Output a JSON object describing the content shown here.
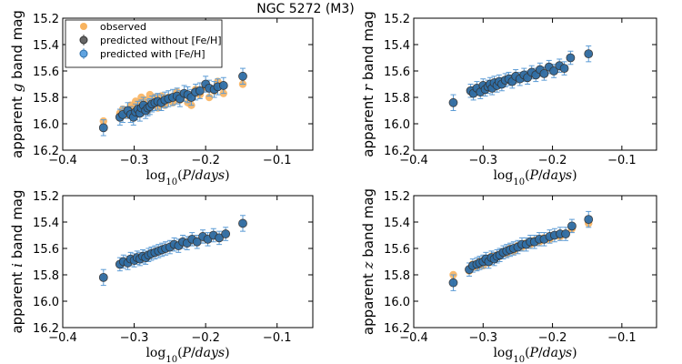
{
  "title": "NGC 5272 (M3)",
  "colors": {
    "observed": "#f8b35f",
    "predicted_without": "#333333",
    "predicted_with": "#5fa3e0",
    "errorbar": "#5b9bd5",
    "edge": "#333333"
  },
  "legend": {
    "observed": "observed",
    "predicted_without": "predicted without [Fe/H]",
    "predicted_with": "predicted with [Fe/H]"
  },
  "chart_data": [
    {
      "type": "scatter",
      "band": "g",
      "ylabel_prefix": "apparent ",
      "ylabel_var": "g",
      "ylabel_suffix": " band mag",
      "xlabel": "log10(P/days)",
      "xlim": [
        -0.4,
        -0.05
      ],
      "ylim": [
        16.2,
        15.2
      ],
      "xticks": [
        "−0.4",
        "−0.3",
        "−0.2",
        "−0.1"
      ],
      "yticks": [
        "15.2",
        "15.4",
        "15.6",
        "15.8",
        "16.0",
        "16.2"
      ],
      "points": [
        {
          "x": -0.343,
          "obs": 15.98,
          "pred": 16.03,
          "err": 0.06
        },
        {
          "x": -0.32,
          "obs": 15.92,
          "pred": 15.95,
          "err": 0.06
        },
        {
          "x": -0.316,
          "obs": 15.89,
          "pred": 15.93,
          "err": 0.06
        },
        {
          "x": -0.309,
          "obs": 15.93,
          "pred": 15.9,
          "err": 0.06
        },
        {
          "x": -0.305,
          "obs": 15.86,
          "pred": 15.93,
          "err": 0.06
        },
        {
          "x": -0.301,
          "obs": 15.88,
          "pred": 15.95,
          "err": 0.06
        },
        {
          "x": -0.298,
          "obs": 15.83,
          "pred": 15.91,
          "err": 0.06
        },
        {
          "x": -0.295,
          "obs": 15.9,
          "pred": 15.89,
          "err": 0.06
        },
        {
          "x": -0.292,
          "obs": 15.85,
          "pred": 15.92,
          "err": 0.06
        },
        {
          "x": -0.29,
          "obs": 15.8,
          "pred": 15.88,
          "err": 0.06
        },
        {
          "x": -0.287,
          "obs": 15.87,
          "pred": 15.86,
          "err": 0.06
        },
        {
          "x": -0.284,
          "obs": 15.82,
          "pred": 15.9,
          "err": 0.06
        },
        {
          "x": -0.281,
          "obs": 15.9,
          "pred": 15.88,
          "err": 0.06
        },
        {
          "x": -0.278,
          "obs": 15.78,
          "pred": 15.87,
          "err": 0.06
        },
        {
          "x": -0.275,
          "obs": 15.84,
          "pred": 15.85,
          "err": 0.06
        },
        {
          "x": -0.271,
          "obs": 15.8,
          "pred": 15.84,
          "err": 0.06
        },
        {
          "x": -0.267,
          "obs": 15.88,
          "pred": 15.83,
          "err": 0.06
        },
        {
          "x": -0.262,
          "obs": 15.79,
          "pred": 15.84,
          "err": 0.06
        },
        {
          "x": -0.257,
          "obs": 15.86,
          "pred": 15.82,
          "err": 0.06
        },
        {
          "x": -0.252,
          "obs": 15.8,
          "pred": 15.81,
          "err": 0.06
        },
        {
          "x": -0.246,
          "obs": 15.84,
          "pred": 15.8,
          "err": 0.06
        },
        {
          "x": -0.24,
          "obs": 15.76,
          "pred": 15.79,
          "err": 0.06
        },
        {
          "x": -0.236,
          "obs": 15.82,
          "pred": 15.81,
          "err": 0.06
        },
        {
          "x": -0.23,
          "obs": 15.78,
          "pred": 15.77,
          "err": 0.06
        },
        {
          "x": -0.225,
          "obs": 15.84,
          "pred": 15.78,
          "err": 0.06
        },
        {
          "x": -0.22,
          "obs": 15.86,
          "pred": 15.8,
          "err": 0.06
        },
        {
          "x": -0.214,
          "obs": 15.74,
          "pred": 15.76,
          "err": 0.06
        },
        {
          "x": -0.208,
          "obs": 15.78,
          "pred": 15.75,
          "err": 0.06
        },
        {
          "x": -0.2,
          "obs": 15.72,
          "pred": 15.7,
          "err": 0.06
        },
        {
          "x": -0.195,
          "obs": 15.8,
          "pred": 15.73,
          "err": 0.06
        },
        {
          "x": -0.188,
          "obs": 15.75,
          "pred": 15.74,
          "err": 0.06
        },
        {
          "x": -0.183,
          "obs": 15.68,
          "pred": 15.72,
          "err": 0.06
        },
        {
          "x": -0.175,
          "obs": 15.77,
          "pred": 15.71,
          "err": 0.06
        },
        {
          "x": -0.148,
          "obs": 15.7,
          "pred": 15.64,
          "err": 0.06
        }
      ]
    },
    {
      "type": "scatter",
      "band": "r",
      "ylabel_prefix": "apparent ",
      "ylabel_var": "r",
      "ylabel_suffix": " band mag",
      "xlabel": "log10(P/days)",
      "xlim": [
        -0.4,
        -0.05
      ],
      "ylim": [
        16.2,
        15.2
      ],
      "xticks": [
        "−0.4",
        "−0.3",
        "−0.2",
        "−0.1"
      ],
      "yticks": [
        "15.2",
        "15.4",
        "15.6",
        "15.8",
        "16.0",
        "16.2"
      ],
      "points": [
        {
          "x": -0.343,
          "obs": 15.84,
          "pred": 15.84,
          "err": 0.06
        },
        {
          "x": -0.318,
          "obs": 15.75,
          "pred": 15.75,
          "err": 0.05
        },
        {
          "x": -0.314,
          "obs": 15.77,
          "pred": 15.77,
          "err": 0.05
        },
        {
          "x": -0.309,
          "obs": 15.73,
          "pred": 15.73,
          "err": 0.05
        },
        {
          "x": -0.304,
          "obs": 15.76,
          "pred": 15.76,
          "err": 0.05
        },
        {
          "x": -0.3,
          "obs": 15.71,
          "pred": 15.71,
          "err": 0.05
        },
        {
          "x": -0.297,
          "obs": 15.74,
          "pred": 15.74,
          "err": 0.05
        },
        {
          "x": -0.293,
          "obs": 15.72,
          "pred": 15.72,
          "err": 0.05
        },
        {
          "x": -0.29,
          "obs": 15.7,
          "pred": 15.7,
          "err": 0.05
        },
        {
          "x": -0.287,
          "obs": 15.73,
          "pred": 15.73,
          "err": 0.05
        },
        {
          "x": -0.284,
          "obs": 15.69,
          "pred": 15.69,
          "err": 0.05
        },
        {
          "x": -0.28,
          "obs": 15.71,
          "pred": 15.71,
          "err": 0.05
        },
        {
          "x": -0.277,
          "obs": 15.68,
          "pred": 15.68,
          "err": 0.05
        },
        {
          "x": -0.273,
          "obs": 15.7,
          "pred": 15.7,
          "err": 0.05
        },
        {
          "x": -0.268,
          "obs": 15.67,
          "pred": 15.67,
          "err": 0.05
        },
        {
          "x": -0.263,
          "obs": 15.66,
          "pred": 15.66,
          "err": 0.05
        },
        {
          "x": -0.258,
          "obs": 15.68,
          "pred": 15.68,
          "err": 0.05
        },
        {
          "x": -0.253,
          "obs": 15.64,
          "pred": 15.64,
          "err": 0.05
        },
        {
          "x": -0.247,
          "obs": 15.66,
          "pred": 15.66,
          "err": 0.05
        },
        {
          "x": -0.241,
          "obs": 15.63,
          "pred": 15.63,
          "err": 0.05
        },
        {
          "x": -0.236,
          "obs": 15.65,
          "pred": 15.65,
          "err": 0.05
        },
        {
          "x": -0.23,
          "obs": 15.61,
          "pred": 15.61,
          "err": 0.05
        },
        {
          "x": -0.224,
          "obs": 15.63,
          "pred": 15.63,
          "err": 0.05
        },
        {
          "x": -0.218,
          "obs": 15.59,
          "pred": 15.59,
          "err": 0.05
        },
        {
          "x": -0.212,
          "obs": 15.62,
          "pred": 15.62,
          "err": 0.05
        },
        {
          "x": -0.205,
          "obs": 15.57,
          "pred": 15.57,
          "err": 0.05
        },
        {
          "x": -0.198,
          "obs": 15.6,
          "pred": 15.6,
          "err": 0.05
        },
        {
          "x": -0.19,
          "obs": 15.56,
          "pred": 15.56,
          "err": 0.05
        },
        {
          "x": -0.183,
          "obs": 15.58,
          "pred": 15.58,
          "err": 0.05
        },
        {
          "x": -0.174,
          "obs": 15.5,
          "pred": 15.5,
          "err": 0.05
        },
        {
          "x": -0.148,
          "obs": 15.47,
          "pred": 15.47,
          "err": 0.06
        }
      ]
    },
    {
      "type": "scatter",
      "band": "i",
      "ylabel_prefix": "apparent ",
      "ylabel_var": "i",
      "ylabel_suffix": " band mag",
      "xlabel": "log10(P/days)",
      "xlim": [
        -0.4,
        -0.05
      ],
      "ylim": [
        16.2,
        15.2
      ],
      "xticks": [
        "−0.4",
        "−0.3",
        "−0.2",
        "−0.1"
      ],
      "yticks": [
        "15.2",
        "15.4",
        "15.6",
        "15.8",
        "16.0",
        "16.2"
      ],
      "points": [
        {
          "x": -0.343,
          "obs": 15.82,
          "pred": 15.82,
          "err": 0.06
        },
        {
          "x": -0.32,
          "obs": 15.72,
          "pred": 15.72,
          "err": 0.05
        },
        {
          "x": -0.315,
          "obs": 15.7,
          "pred": 15.7,
          "err": 0.05
        },
        {
          "x": -0.309,
          "obs": 15.71,
          "pred": 15.71,
          "err": 0.05
        },
        {
          "x": -0.305,
          "obs": 15.68,
          "pred": 15.68,
          "err": 0.05
        },
        {
          "x": -0.3,
          "obs": 15.69,
          "pred": 15.69,
          "err": 0.05
        },
        {
          "x": -0.296,
          "obs": 15.67,
          "pred": 15.67,
          "err": 0.05
        },
        {
          "x": -0.292,
          "obs": 15.68,
          "pred": 15.68,
          "err": 0.05
        },
        {
          "x": -0.288,
          "obs": 15.66,
          "pred": 15.66,
          "err": 0.05
        },
        {
          "x": -0.284,
          "obs": 15.67,
          "pred": 15.67,
          "err": 0.05
        },
        {
          "x": -0.28,
          "obs": 15.65,
          "pred": 15.65,
          "err": 0.05
        },
        {
          "x": -0.276,
          "obs": 15.64,
          "pred": 15.64,
          "err": 0.05
        },
        {
          "x": -0.271,
          "obs": 15.63,
          "pred": 15.63,
          "err": 0.05
        },
        {
          "x": -0.266,
          "obs": 15.62,
          "pred": 15.62,
          "err": 0.05
        },
        {
          "x": -0.261,
          "obs": 15.61,
          "pred": 15.61,
          "err": 0.05
        },
        {
          "x": -0.256,
          "obs": 15.6,
          "pred": 15.6,
          "err": 0.05
        },
        {
          "x": -0.25,
          "obs": 15.59,
          "pred": 15.59,
          "err": 0.05
        },
        {
          "x": -0.244,
          "obs": 15.57,
          "pred": 15.57,
          "err": 0.05
        },
        {
          "x": -0.238,
          "obs": 15.58,
          "pred": 15.58,
          "err": 0.05
        },
        {
          "x": -0.232,
          "obs": 15.55,
          "pred": 15.55,
          "err": 0.05
        },
        {
          "x": -0.226,
          "obs": 15.56,
          "pred": 15.56,
          "err": 0.05
        },
        {
          "x": -0.219,
          "obs": 15.53,
          "pred": 15.53,
          "err": 0.05
        },
        {
          "x": -0.212,
          "obs": 15.55,
          "pred": 15.55,
          "err": 0.05
        },
        {
          "x": -0.204,
          "obs": 15.51,
          "pred": 15.51,
          "err": 0.05
        },
        {
          "x": -0.197,
          "obs": 15.53,
          "pred": 15.53,
          "err": 0.05
        },
        {
          "x": -0.189,
          "obs": 15.5,
          "pred": 15.5,
          "err": 0.05
        },
        {
          "x": -0.181,
          "obs": 15.52,
          "pred": 15.52,
          "err": 0.05
        },
        {
          "x": -0.172,
          "obs": 15.49,
          "pred": 15.49,
          "err": 0.05
        },
        {
          "x": -0.148,
          "obs": 15.41,
          "pred": 15.41,
          "err": 0.06
        }
      ]
    },
    {
      "type": "scatter",
      "band": "z",
      "ylabel_prefix": "apparent ",
      "ylabel_var": "z",
      "ylabel_suffix": " band mag",
      "xlabel": "log10(P/days)",
      "xlim": [
        -0.4,
        -0.05
      ],
      "ylim": [
        16.2,
        15.2
      ],
      "xticks": [
        "−0.4",
        "−0.3",
        "−0.2",
        "−0.1"
      ],
      "yticks": [
        "15.2",
        "15.4",
        "15.6",
        "15.8",
        "16.0",
        "16.2"
      ],
      "points": [
        {
          "x": -0.343,
          "obs": 15.8,
          "pred": 15.86,
          "err": 0.06
        },
        {
          "x": -0.32,
          "obs": 15.77,
          "pred": 15.76,
          "err": 0.05
        },
        {
          "x": -0.315,
          "obs": 15.72,
          "pred": 15.73,
          "err": 0.05
        },
        {
          "x": -0.309,
          "obs": 15.74,
          "pred": 15.72,
          "err": 0.05
        },
        {
          "x": -0.305,
          "obs": 15.7,
          "pred": 15.71,
          "err": 0.05
        },
        {
          "x": -0.3,
          "obs": 15.73,
          "pred": 15.7,
          "err": 0.05
        },
        {
          "x": -0.296,
          "obs": 15.69,
          "pred": 15.68,
          "err": 0.05
        },
        {
          "x": -0.292,
          "obs": 15.71,
          "pred": 15.7,
          "err": 0.05
        },
        {
          "x": -0.288,
          "obs": 15.66,
          "pred": 15.67,
          "err": 0.05
        },
        {
          "x": -0.284,
          "obs": 15.68,
          "pred": 15.68,
          "err": 0.05
        },
        {
          "x": -0.28,
          "obs": 15.65,
          "pred": 15.66,
          "err": 0.05
        },
        {
          "x": -0.276,
          "obs": 15.66,
          "pred": 15.65,
          "err": 0.05
        },
        {
          "x": -0.271,
          "obs": 15.63,
          "pred": 15.63,
          "err": 0.05
        },
        {
          "x": -0.266,
          "obs": 15.64,
          "pred": 15.62,
          "err": 0.05
        },
        {
          "x": -0.261,
          "obs": 15.6,
          "pred": 15.61,
          "err": 0.05
        },
        {
          "x": -0.256,
          "obs": 15.62,
          "pred": 15.6,
          "err": 0.05
        },
        {
          "x": -0.25,
          "obs": 15.58,
          "pred": 15.59,
          "err": 0.05
        },
        {
          "x": -0.244,
          "obs": 15.59,
          "pred": 15.57,
          "err": 0.05
        },
        {
          "x": -0.238,
          "obs": 15.56,
          "pred": 15.57,
          "err": 0.05
        },
        {
          "x": -0.232,
          "obs": 15.57,
          "pred": 15.55,
          "err": 0.05
        },
        {
          "x": -0.226,
          "obs": 15.54,
          "pred": 15.55,
          "err": 0.05
        },
        {
          "x": -0.219,
          "obs": 15.55,
          "pred": 15.53,
          "err": 0.05
        },
        {
          "x": -0.212,
          "obs": 15.52,
          "pred": 15.53,
          "err": 0.05
        },
        {
          "x": -0.204,
          "obs": 15.53,
          "pred": 15.51,
          "err": 0.05
        },
        {
          "x": -0.197,
          "obs": 15.5,
          "pred": 15.5,
          "err": 0.05
        },
        {
          "x": -0.189,
          "obs": 15.51,
          "pred": 15.49,
          "err": 0.05
        },
        {
          "x": -0.181,
          "obs": 15.49,
          "pred": 15.49,
          "err": 0.05
        },
        {
          "x": -0.172,
          "obs": 15.45,
          "pred": 15.43,
          "err": 0.05
        },
        {
          "x": -0.148,
          "obs": 15.41,
          "pred": 15.38,
          "err": 0.06
        }
      ]
    }
  ]
}
